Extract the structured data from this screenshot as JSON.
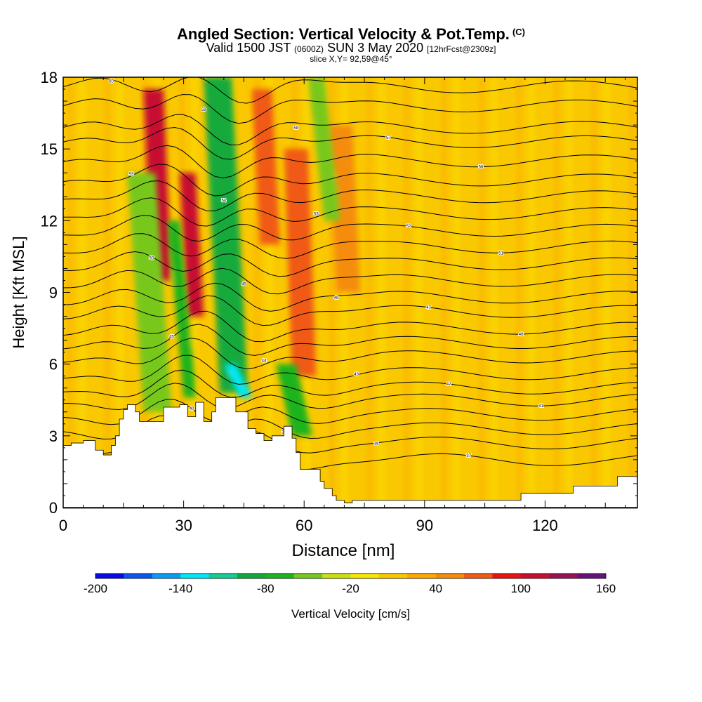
{
  "title": {
    "main": "Angled Section: Vertical Velocity & Pot.Temp.",
    "units_tag": "(C)",
    "valid_prefix": "Valid 1500 JST",
    "valid_utc": "(0600Z)",
    "valid_date": "SUN 3 May 2020",
    "forecast_tag": "[12hrFcst@2309z]",
    "slice": "slice X,Y= 92,59@45°"
  },
  "chart_data": {
    "type": "heatmap",
    "xlabel": "Distance [nm]",
    "ylabel": "Height [Kft MSL]",
    "xlim": [
      0,
      143
    ],
    "ylim": [
      0,
      18
    ],
    "xticks": [
      0,
      30,
      60,
      90,
      120
    ],
    "yticks": [
      0,
      3,
      6,
      9,
      12,
      15,
      18
    ],
    "colorbar": {
      "label": "Vertical Velocity [cm/s]",
      "ticks": [
        -200,
        -140,
        -80,
        -20,
        40,
        100,
        160
      ],
      "levels": [
        -200,
        -180,
        -160,
        -140,
        -120,
        -100,
        -80,
        -60,
        -40,
        -20,
        0,
        20,
        40,
        60,
        80,
        100,
        120,
        140,
        160
      ],
      "colors": [
        "#0a0ae8",
        "#0a55f0",
        "#0a9bf5",
        "#00e8f5",
        "#16cc90",
        "#12aa3c",
        "#1eb41e",
        "#78c81e",
        "#c8e114",
        "#fae600",
        "#fac800",
        "#faaa00",
        "#f58c0a",
        "#f05a14",
        "#e61414",
        "#c80f32",
        "#961455",
        "#641478"
      ]
    },
    "terrain_kft": [
      [
        0,
        2.6
      ],
      [
        2,
        2.7
      ],
      [
        5,
        2.8
      ],
      [
        8,
        2.4
      ],
      [
        10,
        2.2
      ],
      [
        12,
        2.6
      ],
      [
        13,
        3.0
      ],
      [
        14,
        3.7
      ],
      [
        15,
        4.1
      ],
      [
        16,
        4.3
      ],
      [
        18,
        4.0
      ],
      [
        19,
        3.6
      ],
      [
        24,
        3.6
      ],
      [
        25,
        4.2
      ],
      [
        29,
        4.3
      ],
      [
        31,
        3.8
      ],
      [
        33,
        4.4
      ],
      [
        35,
        3.6
      ],
      [
        37,
        4.0
      ],
      [
        38,
        4.6
      ],
      [
        42,
        4.6
      ],
      [
        43,
        4.0
      ],
      [
        46,
        3.3
      ],
      [
        48,
        3.1
      ],
      [
        50,
        2.8
      ],
      [
        52,
        3.0
      ],
      [
        55,
        3.4
      ],
      [
        57,
        2.9
      ],
      [
        58,
        2.3
      ],
      [
        59,
        1.6
      ],
      [
        63,
        1.6
      ],
      [
        64,
        1.1
      ],
      [
        65,
        0.8
      ],
      [
        67,
        0.5
      ],
      [
        68,
        0.3
      ],
      [
        70,
        0.2
      ],
      [
        72,
        0.3
      ],
      [
        113,
        0.3
      ],
      [
        114,
        0.6
      ],
      [
        126,
        0.6
      ],
      [
        127,
        0.9
      ],
      [
        137,
        0.9
      ],
      [
        138,
        1.3
      ],
      [
        143,
        1.3
      ]
    ],
    "updraft_bands": [
      {
        "x": [
          20,
          25
        ],
        "y": [
          9.5,
          17.5
        ],
        "peak": 110
      },
      {
        "x": [
          29,
          33
        ],
        "y": [
          8,
          14
        ],
        "peak": 100
      },
      {
        "x": [
          47,
          52
        ],
        "y": [
          11,
          17.5
        ],
        "peak": 70
      },
      {
        "x": [
          55,
          61
        ],
        "y": [
          5.5,
          15
        ],
        "peak": 60
      },
      {
        "x": [
          66,
          72
        ],
        "y": [
          9,
          16
        ],
        "peak": 40
      }
    ],
    "downdraft_bands": [
      {
        "x": [
          16,
          23
        ],
        "y": [
          4,
          14
        ],
        "peak": -60
      },
      {
        "x": [
          26,
          29
        ],
        "y": [
          4.6,
          12
        ],
        "peak": -80
      },
      {
        "x": [
          35,
          42
        ],
        "y": [
          4.8,
          18
        ],
        "peak": -90
      },
      {
        "x": [
          40,
          43
        ],
        "y": [
          4.6,
          6
        ],
        "peak": -140
      },
      {
        "x": [
          53,
          58
        ],
        "y": [
          3,
          6
        ],
        "peak": -70
      },
      {
        "x": [
          61,
          65
        ],
        "y": [
          12,
          18
        ],
        "peak": -50
      }
    ],
    "theta_levels": [
      {
        "y": 17.6,
        "label": "60"
      },
      {
        "y": 16.8,
        "label": "59"
      },
      {
        "y": 15.9,
        "label": "58"
      },
      {
        "y": 15.3,
        "label": "57"
      },
      {
        "y": 14.5,
        "label": "56"
      },
      {
        "y": 13.7,
        "label": "55"
      },
      {
        "y": 13.0,
        "label": "54"
      },
      {
        "y": 12.3,
        "label": "53"
      },
      {
        "y": 11.6,
        "label": "52"
      },
      {
        "y": 10.9,
        "label": "51"
      },
      {
        "y": 10.2,
        "label": "50"
      },
      {
        "y": 9.5,
        "label": "49"
      },
      {
        "y": 8.8,
        "label": "48"
      },
      {
        "y": 8.2,
        "label": "47"
      },
      {
        "y": 7.5,
        "label": "46"
      },
      {
        "y": 6.9,
        "label": "45"
      },
      {
        "y": 6.3,
        "label": "44"
      },
      {
        "y": 5.6,
        "label": "43"
      },
      {
        "y": 5.0,
        "label": "42"
      },
      {
        "y": 4.5,
        "label": "41"
      },
      {
        "y": 3.9,
        "label": "40"
      },
      {
        "y": 3.3,
        "label": "39"
      },
      {
        "y": 2.7,
        "label": "38"
      },
      {
        "y": 2.0,
        "label": "37"
      }
    ]
  }
}
